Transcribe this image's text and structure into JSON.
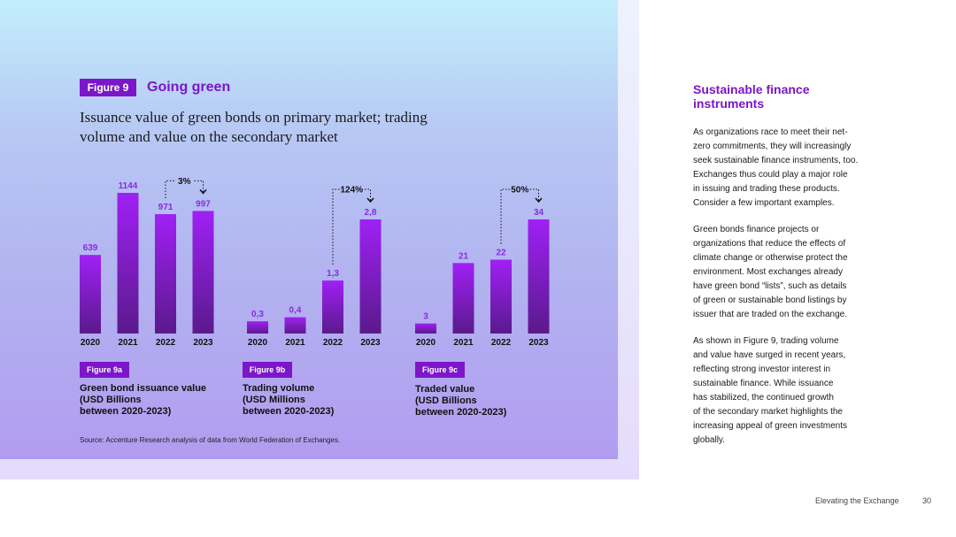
{
  "figure": {
    "tag": "Figure 9",
    "title": "Going green",
    "subtitle_lines": [
      "Issuance value of green bonds on primary market; trading",
      "volume and value on the secondary market"
    ],
    "source": "Source: Accenture Research analysis of data from World Federation of Exchanges."
  },
  "chart_data": [
    {
      "type": "bar",
      "categories": [
        "2020",
        "2021",
        "2022",
        "2023"
      ],
      "values": [
        639,
        1144,
        971,
        997
      ],
      "value_labels": [
        "639",
        "1144",
        "971",
        "997"
      ],
      "annotation": "3%",
      "tag": "Figure 9a",
      "caption_lines": [
        "Green bond issuance value",
        "(USD Billions",
        "between 2020-2023)"
      ],
      "ylim": [
        0,
        1144
      ],
      "color": "#9b1ff0"
    },
    {
      "type": "bar",
      "categories": [
        "2020",
        "2021",
        "2022",
        "2023"
      ],
      "values": [
        0.3,
        0.4,
        1.3,
        2.8
      ],
      "value_labels": [
        "0,3",
        "0,4",
        "1,3",
        "2,8"
      ],
      "annotation": "124%",
      "tag": "Figure 9b",
      "caption_lines": [
        "Trading volume",
        "(USD Millions",
        "between 2020-2023)"
      ],
      "ylim": [
        0,
        2.8
      ],
      "color": "#9b1ff0"
    },
    {
      "type": "bar",
      "categories": [
        "2020",
        "2021",
        "2022",
        "2023"
      ],
      "values": [
        3,
        21,
        22,
        34
      ],
      "value_labels": [
        "3",
        "21",
        "22",
        "34"
      ],
      "annotation": "50%",
      "tag": "Figure 9c",
      "caption_lines": [
        "Traded value",
        "(USD Billions",
        "between 2020-2023)"
      ],
      "ylim": [
        0,
        34
      ],
      "color": "#9b1ff0"
    }
  ],
  "sidebar": {
    "heading_lines": [
      "Sustainable finance",
      "instruments"
    ],
    "paragraphs": [
      [
        "As organizations race to meet their net-",
        "zero commitments, they will increasingly",
        "seek sustainable finance instruments, too.",
        "Exchanges thus could play a major role",
        "in issuing and trading these products.",
        "Consider a few important examples."
      ],
      [
        "Green bonds finance projects or",
        "organizations that reduce the effects of",
        "climate change or otherwise protect the",
        "environment. Most exchanges already",
        "have green bond “lists”, such as details",
        "of green or sustainable bond listings by",
        "issuer that are traded on the exchange."
      ],
      [
        "As shown in Figure 9, trading volume",
        "and value have surged in recent years,",
        "reflecting strong investor interest in",
        "sustainable finance. While issuance",
        "has stabilized, the continued growth",
        "of the secondary market highlights the",
        "increasing appeal of green investments",
        "globally."
      ]
    ]
  },
  "footer": {
    "title": "Elevating the Exchange",
    "page": "30"
  }
}
